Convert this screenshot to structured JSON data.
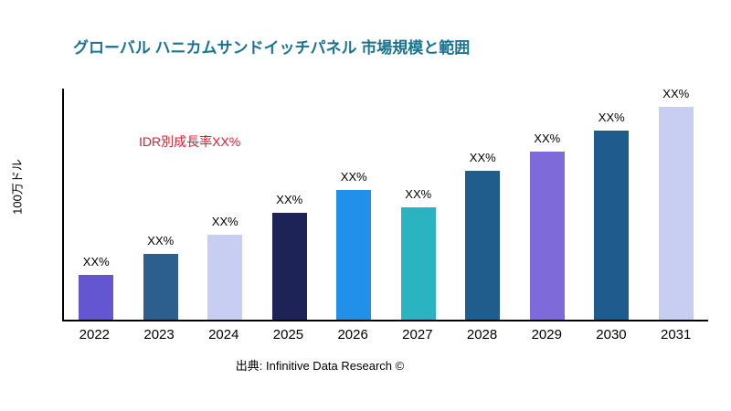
{
  "title": "グローバル ハニカムサンドイッチパネル 市場規模と範囲",
  "annotation": "IDR別成長率XX%",
  "ylabel": "100万ドル",
  "source": "出典: Infinitive Data Research ©",
  "colors": {
    "title": "#1a7390",
    "annotation": "#e8192c",
    "axis": "#000000",
    "background": "#ffffff"
  },
  "chart_data": {
    "type": "bar",
    "title": "グローバル ハニカムサンドイッチパネル 市場規模と範囲",
    "xlabel": "",
    "ylabel": "100万ドル",
    "categories": [
      "2022",
      "2023",
      "2024",
      "2025",
      "2026",
      "2027",
      "2028",
      "2029",
      "2030",
      "2031"
    ],
    "values": [
      21,
      31,
      40,
      50,
      61,
      53,
      70,
      79,
      89,
      100
    ],
    "values_note": "relative bar heights estimated from pixels, max bar = 100 (no numeric y-axis ticks shown)",
    "data_labels": [
      "XX%",
      "XX%",
      "XX%",
      "XX%",
      "XX%",
      "XX%",
      "XX%",
      "XX%",
      "XX%",
      "XX%"
    ],
    "bar_colors": [
      "#6456cf",
      "#2d5f8d",
      "#c8cdf2",
      "#1e2357",
      "#2090ea",
      "#2ab3c0",
      "#205d8c",
      "#7e6ad9",
      "#1f5c8d",
      "#c8cdf2"
    ],
    "annotation": "IDR別成長率XX%",
    "source": "出典: Infinitive Data Research ©",
    "grid": false,
    "legend": false,
    "ylim": [
      0,
      110
    ]
  }
}
